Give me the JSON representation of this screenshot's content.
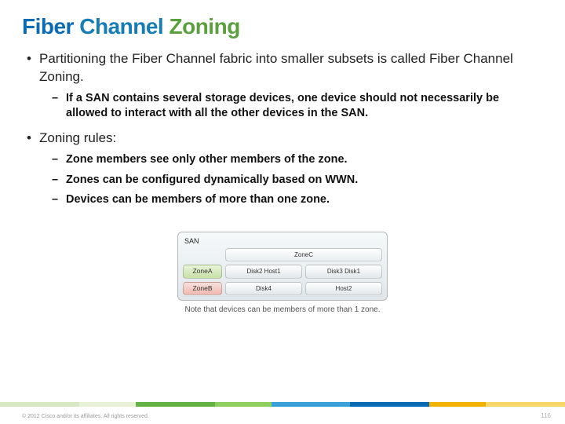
{
  "title": {
    "w1": "Fiber",
    "w2": "Channel",
    "w3": "Zoning"
  },
  "bullets": [
    {
      "text": "Partitioning the Fiber Channel fabric into smaller subsets is called Fiber Channel Zoning.",
      "sub": [
        "If a SAN contains several storage devices, one device should not necessarily be allowed to interact with all the other devices in the SAN."
      ]
    },
    {
      "text": "Zoning rules:",
      "sub": [
        "Zone members see only other members of the zone.",
        "Zones can be configured dynamically based on WWN.",
        "Devices can be members of more than one zone."
      ]
    }
  ],
  "diagram": {
    "outer_label": "SAN",
    "zoneC_label": "ZoneC",
    "zoneA_label": "ZoneA",
    "zoneB_label": "ZoneB",
    "rowA": [
      "Disk2\nHost1",
      "Disk3\nDisk1"
    ],
    "rowB": [
      "Disk4",
      "Host2"
    ],
    "caption": "Note that devices can be members of more than 1 zone.",
    "styling": {
      "container_bg_top": "#f6f9fa",
      "container_bg_bottom": "#dfe6ea",
      "border_color": "#b8b8b8",
      "zoneA_bg": "#c8e0a8",
      "zoneB_bg": "#f0b8b0",
      "cell_bg": "#e2e7ea",
      "label_fontsize": 8.5,
      "cell_fontsize": 8,
      "caption_color": "#555555"
    }
  },
  "footer_bar_colors": [
    {
      "color": "#d9e8c4",
      "pct": 14
    },
    {
      "color": "#e8f0d6",
      "pct": 10
    },
    {
      "color": "#62b245",
      "pct": 14
    },
    {
      "color": "#8fcf5f",
      "pct": 10
    },
    {
      "color": "#3aa0d8",
      "pct": 14
    },
    {
      "color": "#0a6ab4",
      "pct": 14
    },
    {
      "color": "#f2b200",
      "pct": 10
    },
    {
      "color": "#f6d767",
      "pct": 14
    }
  ],
  "copyright": "© 2012 Cisco and/or its affiliates. All rights reserved.",
  "page_number": "116"
}
